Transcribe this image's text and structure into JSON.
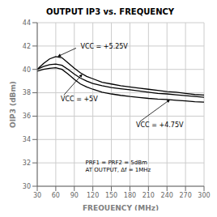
{
  "chart_data": {
    "type": "line",
    "title": "OUTPUT IP3 vs. FREQUENCY",
    "xlabel": "FREQUENCY (MHz)",
    "ylabel": "OIP3 (dBm)",
    "x": [
      30,
      40,
      50,
      60,
      70,
      80,
      90,
      100,
      110,
      120,
      135,
      150,
      165,
      180,
      195,
      210,
      225,
      240,
      255,
      270,
      285,
      300
    ],
    "series": [
      {
        "values": [
          40.0,
          40.5,
          40.9,
          41.1,
          41.0,
          40.55,
          40.1,
          39.7,
          39.4,
          39.2,
          38.9,
          38.75,
          38.6,
          38.5,
          38.4,
          38.3,
          38.2,
          38.1,
          38.05,
          37.95,
          37.85,
          37.8
        ]
      },
      {
        "values": [
          40.0,
          40.25,
          40.4,
          40.45,
          40.35,
          40.0,
          39.6,
          39.25,
          39.0,
          38.8,
          38.6,
          38.45,
          38.35,
          38.25,
          38.15,
          38.05,
          37.95,
          37.9,
          37.82,
          37.75,
          37.68,
          37.62
        ]
      },
      {
        "values": [
          39.85,
          40.0,
          40.1,
          40.15,
          40.0,
          39.6,
          39.15,
          38.75,
          38.5,
          38.3,
          38.05,
          37.9,
          37.78,
          37.68,
          37.6,
          37.52,
          37.46,
          37.42,
          37.36,
          37.3,
          37.24,
          37.2
        ]
      }
    ],
    "color": "#000000",
    "xlim": [
      30,
      300
    ],
    "ylim": [
      30,
      44
    ],
    "xticks": [
      30,
      60,
      90,
      120,
      150,
      180,
      210,
      240,
      270,
      300
    ],
    "yticks": [
      30,
      32,
      34,
      36,
      38,
      40,
      42,
      44
    ],
    "grid": true,
    "annotations": [
      {
        "text": "VCC = +5.25V",
        "x": 100,
        "y": 42.0,
        "arrow_x": 63,
        "arrow_y": 41.1
      },
      {
        "text": "VCC = +5V",
        "x": 68,
        "y": 37.5,
        "arrow_x": 103,
        "arrow_y": 39.6
      },
      {
        "text": "VCC = +4.75V",
        "x": 190,
        "y": 35.3,
        "arrow_x": 245,
        "arrow_y": 37.42
      },
      {
        "text": "PRF1 = PRF2 = 5dBm\nAT OUTPUT, Δf = 1MHz",
        "x": 108,
        "y": 31.7
      }
    ]
  }
}
